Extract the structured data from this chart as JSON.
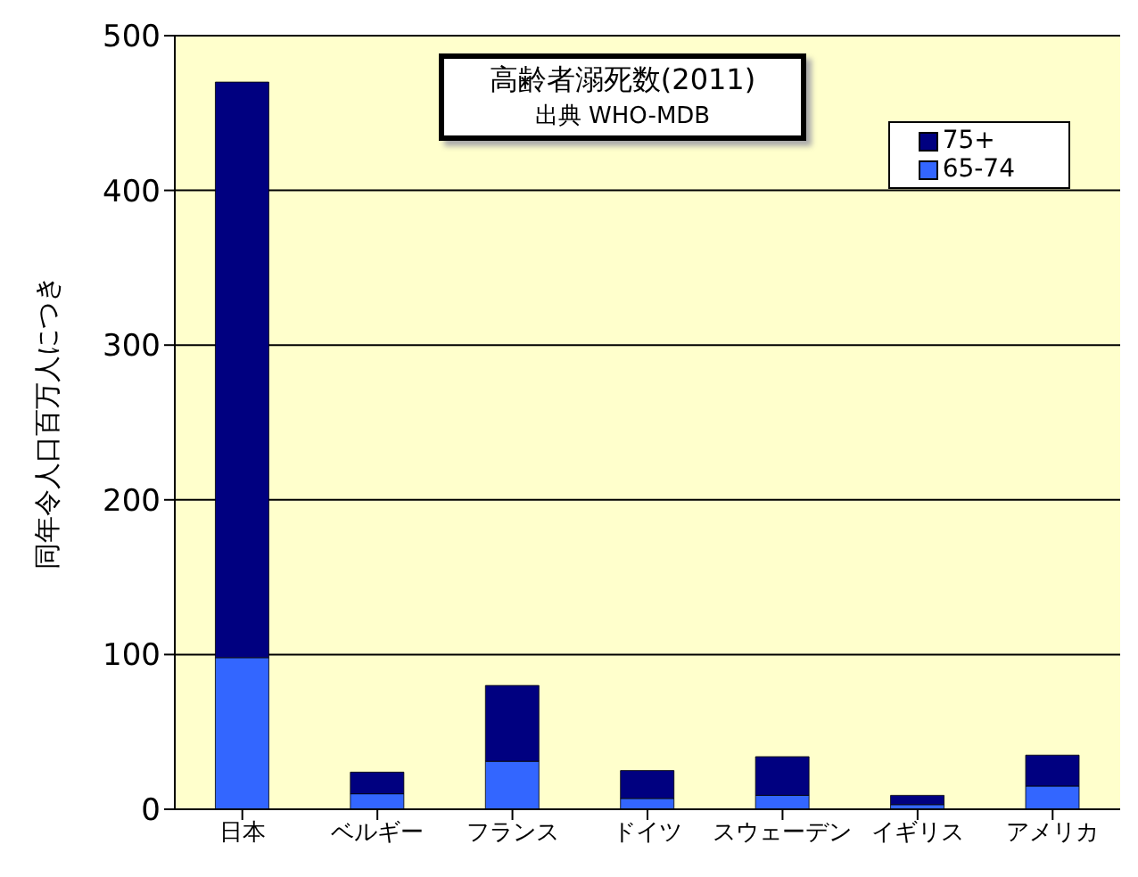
{
  "chart_data": {
    "type": "bar",
    "title": "高齢者溺死数(2011)",
    "subtitle": "出典 WHO-MDB",
    "ylabel": "同年令人口百万人につき",
    "categories": [
      "日本",
      "ベルギー",
      "フランス",
      "ドイツ",
      "スウェーデン",
      "イギリス",
      "アメリカ"
    ],
    "stacked": true,
    "series": [
      {
        "name": "65-74",
        "color": "#3366ff",
        "values": [
          98,
          10,
          31,
          7,
          9,
          3,
          15
        ]
      },
      {
        "name": "75+",
        "color": "#000080",
        "values": [
          372,
          14,
          49,
          18,
          25,
          6,
          20
        ]
      }
    ],
    "ylim": [
      0,
      500
    ],
    "yticks": [
      0,
      100,
      200,
      300,
      400,
      500
    ],
    "grid": "y",
    "legend": "top right"
  }
}
